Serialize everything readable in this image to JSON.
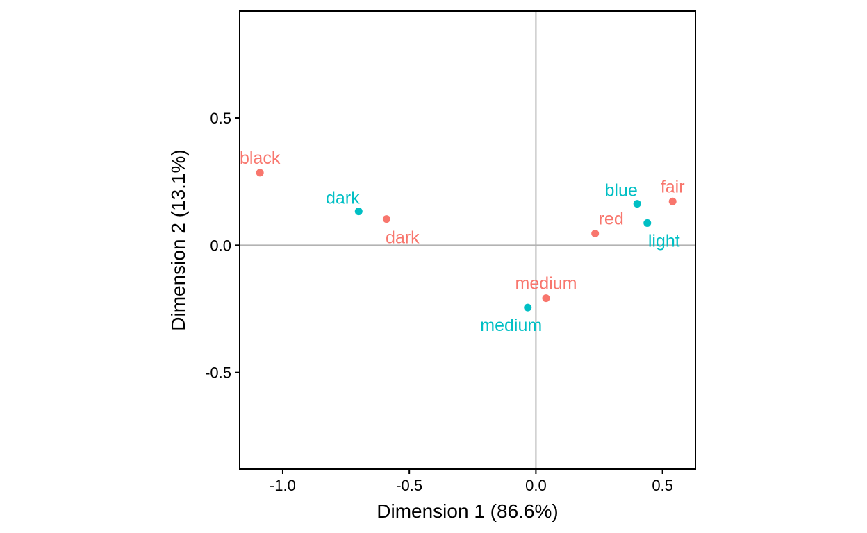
{
  "chart_data": {
    "type": "scatter",
    "xlabel": "Dimension 1 (86.6%)",
    "ylabel": "Dimension 2 (13.1%)",
    "xlim": [
      -1.17,
      0.63
    ],
    "ylim": [
      -0.88,
      0.92
    ],
    "xticks": [
      -1.0,
      -0.5,
      0.0,
      0.5
    ],
    "yticks": [
      -0.5,
      0.0,
      0.5
    ],
    "xtick_labels": [
      "-1.0",
      "-0.5",
      "0.0",
      "0.5"
    ],
    "ytick_labels": [
      "-0.5",
      "0.0",
      "0.5"
    ],
    "reference_lines": {
      "x": 0,
      "y": 0,
      "color": "#b3b3b3"
    },
    "grid": false,
    "legend": "none",
    "series": [
      {
        "color": "#F8766D",
        "points": [
          {
            "label": "black",
            "x": -1.09,
            "y": 0.285,
            "label_pos": "above"
          },
          {
            "label": "dark",
            "x": -0.59,
            "y": 0.103,
            "label_pos": "below"
          },
          {
            "label": "medium",
            "x": 0.04,
            "y": -0.208,
            "label_pos": "above"
          },
          {
            "label": "red",
            "x": 0.234,
            "y": 0.046,
            "label_pos": "above-right"
          },
          {
            "label": "fair",
            "x": 0.54,
            "y": 0.172,
            "label_pos": "above"
          }
        ]
      },
      {
        "color": "#00BFC4",
        "points": [
          {
            "label": "dark",
            "x": -0.7,
            "y": 0.133,
            "label_pos": "above-left"
          },
          {
            "label": "medium",
            "x": -0.032,
            "y": -0.245,
            "label_pos": "below-left"
          },
          {
            "label": "blue",
            "x": 0.4,
            "y": 0.163,
            "label_pos": "above-left"
          },
          {
            "label": "light",
            "x": 0.44,
            "y": 0.087,
            "label_pos": "below-right"
          }
        ]
      }
    ]
  }
}
